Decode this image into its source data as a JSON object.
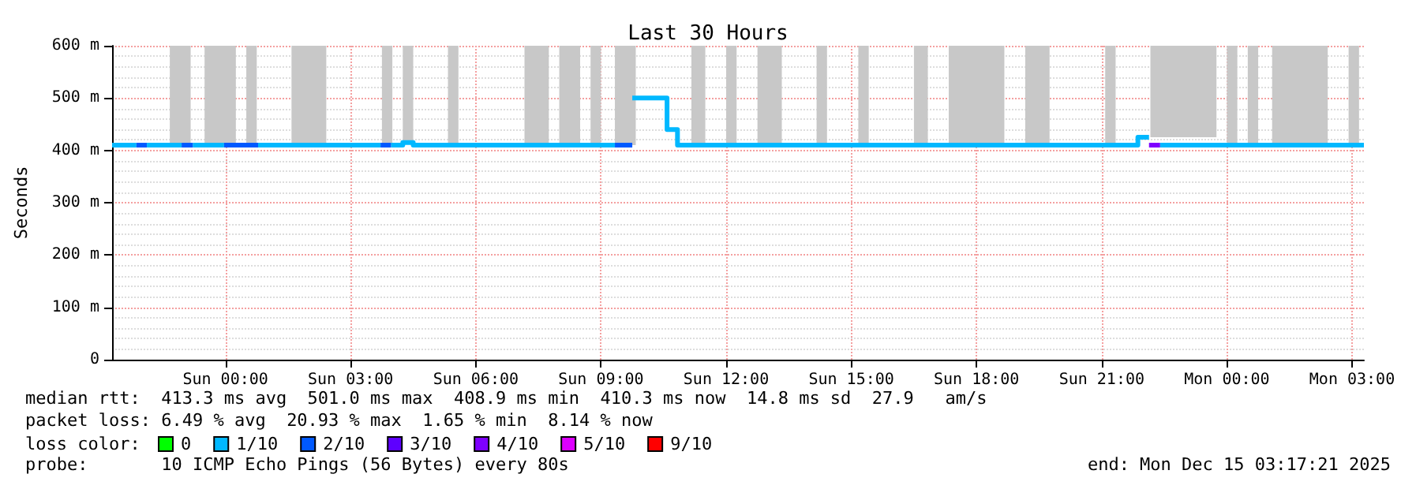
{
  "chart_data": {
    "type": "step",
    "title": "Last 30 Hours",
    "ylabel": "Seconds",
    "xlim": [
      "2025-12-13T21:17",
      "2025-12-15T03:17"
    ],
    "xticks": [
      {
        "value": "2025-12-14T00:00",
        "label": "Sun 00:00"
      },
      {
        "value": "2025-12-14T03:00",
        "label": "Sun 03:00"
      },
      {
        "value": "2025-12-14T06:00",
        "label": "Sun 06:00"
      },
      {
        "value": "2025-12-14T09:00",
        "label": "Sun 09:00"
      },
      {
        "value": "2025-12-14T12:00",
        "label": "Sun 12:00"
      },
      {
        "value": "2025-12-14T15:00",
        "label": "Sun 15:00"
      },
      {
        "value": "2025-12-14T18:00",
        "label": "Sun 18:00"
      },
      {
        "value": "2025-12-14T21:00",
        "label": "Sun 21:00"
      },
      {
        "value": "2025-12-15T00:00",
        "label": "Mon 00:00"
      },
      {
        "value": "2025-12-15T03:00",
        "label": "Mon 03:00"
      }
    ],
    "ylim": [
      0,
      600
    ],
    "yticks": [
      0,
      {
        "value": 100,
        "label": "100 m"
      },
      {
        "value": 200,
        "label": "200 m"
      },
      {
        "value": 300,
        "label": "300 m"
      },
      {
        "value": 400,
        "label": "400 m"
      },
      {
        "value": 500,
        "label": "500 m"
      },
      {
        "value": 600,
        "label": "600 m"
      }
    ],
    "grid": true,
    "legend": "bottom",
    "legend_title": "loss color:",
    "marker": "none",
    "line_style": "solid",
    "series": [
      {
        "name": "0",
        "color": "#00ff00"
      },
      {
        "name": "1/10",
        "color": "#00b8ff",
        "x": [
          "2025-12-13T21:17",
          "2025-12-13T21:52"
        ],
        "values": [
          410,
          410
        ]
      },
      {
        "name": "2/10",
        "color": "#0059ff",
        "x": [
          "2025-12-13T21:52",
          "2025-12-13T22:07"
        ],
        "values": [
          410,
          410
        ]
      },
      {
        "name": "3/10",
        "color": "#5e00ff"
      },
      {
        "name": "4/10",
        "color": "#7e00ff",
        "x": [
          "2025-12-14T22:08",
          "2025-12-14T22:24"
        ],
        "values": [
          410,
          410
        ]
      },
      {
        "name": "5/10",
        "color": "#dd00ff"
      },
      {
        "name": "9/10",
        "color": "#ff0000"
      },
      {
        "color": "#00b8ff",
        "x": [
          "2025-12-13T22:07",
          "2025-12-13T22:57"
        ],
        "values": [
          410,
          410
        ]
      },
      {
        "color": "#00b8ff",
        "x": [
          "2025-12-13T23:13",
          "2025-12-13T23:58"
        ],
        "values": [
          410,
          410
        ]
      },
      {
        "color": "#00b8ff",
        "x": [
          "2025-12-14T00:47",
          "2025-12-14T03:43"
        ],
        "values": [
          410,
          410
        ]
      },
      {
        "color": "#00b8ff",
        "x": [
          "2025-12-14T03:58",
          "2025-12-14T04:15",
          "2025-12-14T04:30",
          "2025-12-14T09:20"
        ],
        "values": [
          410,
          415,
          410,
          410
        ]
      },
      {
        "color": "#00b8ff",
        "x": [
          "2025-12-14T09:45",
          "2025-12-14T10:35",
          "2025-12-14T10:50",
          "2025-12-14T21:52",
          "2025-12-14T22:08"
        ],
        "values": [
          500,
          440,
          410,
          425,
          425
        ]
      },
      {
        "color": "#00b8ff",
        "x": [
          "2025-12-14T22:24",
          "2025-12-15T03:17"
        ],
        "values": [
          410,
          410
        ]
      },
      {
        "color": "#0059ff",
        "x": [
          "2025-12-13T22:57",
          "2025-12-13T23:13"
        ],
        "values": [
          410,
          410
        ]
      },
      {
        "color": "#0059ff",
        "x": [
          "2025-12-13T23:58",
          "2025-12-14T00:47"
        ],
        "values": [
          410,
          410
        ]
      },
      {
        "color": "#0059ff",
        "x": [
          "2025-12-14T03:43",
          "2025-12-14T03:58"
        ],
        "values": [
          410,
          410
        ]
      },
      {
        "color": "#0059ff",
        "x": [
          "2025-12-14T09:20",
          "2025-12-14T09:45"
        ],
        "values": [
          410,
          410
        ]
      }
    ],
    "bands": [
      {
        "axis": "x",
        "from": "2025-12-13T22:40",
        "to": "2025-12-13T23:10",
        "color": "#c8c8c8"
      },
      {
        "axis": "x",
        "from": "2025-12-13T23:30",
        "to": "2025-12-14T00:15",
        "color": "#c8c8c8"
      },
      {
        "axis": "x",
        "from": "2025-12-14T00:30",
        "to": "2025-12-14T00:45",
        "color": "#c8c8c8"
      },
      {
        "axis": "x",
        "from": "2025-12-14T01:35",
        "to": "2025-12-14T02:25",
        "color": "#c8c8c8"
      },
      {
        "axis": "x",
        "from": "2025-12-14T03:45",
        "to": "2025-12-14T04:00",
        "color": "#c8c8c8"
      },
      {
        "axis": "x",
        "from": "2025-12-14T04:15",
        "to": "2025-12-14T04:30",
        "color": "#c8c8c8"
      },
      {
        "axis": "x",
        "from": "2025-12-14T05:20",
        "to": "2025-12-14T05:35",
        "color": "#c8c8c8"
      },
      {
        "axis": "x",
        "from": "2025-12-14T07:10",
        "to": "2025-12-14T07:45",
        "color": "#c8c8c8"
      },
      {
        "axis": "x",
        "from": "2025-12-14T08:00",
        "to": "2025-12-14T08:30",
        "color": "#c8c8c8"
      },
      {
        "axis": "x",
        "from": "2025-12-14T08:45",
        "to": "2025-12-14T09:00",
        "color": "#c8c8c8"
      },
      {
        "axis": "x",
        "from": "2025-12-14T09:20",
        "to": "2025-12-14T09:50",
        "color": "#c8c8c8"
      },
      {
        "axis": "x",
        "from": "2025-12-14T11:10",
        "to": "2025-12-14T11:30",
        "color": "#c8c8c8"
      },
      {
        "axis": "x",
        "from": "2025-12-14T12:00",
        "to": "2025-12-14T12:15",
        "color": "#c8c8c8"
      },
      {
        "axis": "x",
        "from": "2025-12-14T12:45",
        "to": "2025-12-14T13:20",
        "color": "#c8c8c8"
      },
      {
        "axis": "x",
        "from": "2025-12-14T14:10",
        "to": "2025-12-14T14:25",
        "color": "#c8c8c8"
      },
      {
        "axis": "x",
        "from": "2025-12-14T15:10",
        "to": "2025-12-14T15:25",
        "color": "#c8c8c8"
      },
      {
        "axis": "x",
        "from": "2025-12-14T16:30",
        "to": "2025-12-14T16:50",
        "color": "#c8c8c8"
      },
      {
        "axis": "x",
        "from": "2025-12-14T17:20",
        "to": "2025-12-14T18:40",
        "color": "#c8c8c8"
      },
      {
        "axis": "x",
        "from": "2025-12-14T19:10",
        "to": "2025-12-14T19:45",
        "color": "#c8c8c8"
      },
      {
        "axis": "x",
        "from": "2025-12-14T21:05",
        "to": "2025-12-14T21:20",
        "color": "#c8c8c8"
      },
      {
        "axis": "x",
        "from": "2025-12-14T22:10",
        "to": "2025-12-14T23:45",
        "color": "#c8c8c8"
      },
      {
        "axis": "x",
        "from": "2025-12-15T00:00",
        "to": "2025-12-15T00:15",
        "color": "#c8c8c8"
      },
      {
        "axis": "x",
        "from": "2025-12-15T00:30",
        "to": "2025-12-15T00:45",
        "color": "#c8c8c8"
      },
      {
        "axis": "x",
        "from": "2025-12-15T01:05",
        "to": "2025-12-15T02:25",
        "color": "#c8c8c8"
      },
      {
        "axis": "x",
        "from": "2025-12-15T02:55",
        "to": "2025-12-15T03:10",
        "color": "#c8c8c8"
      }
    ],
    "annotations": [
      "median rtt:  413.3 ms avg  501.0 ms max  408.9 ms min  410.3 ms now  14.8 ms sd  27.9   am/s",
      "packet loss: 6.49 % avg  20.93 % max  1.65 % min  8.14 % now",
      "probe:       10 ICMP Echo Pings (56 Bytes) every 80s",
      "end: Mon Dec 15 03:17:21 2025"
    ]
  }
}
